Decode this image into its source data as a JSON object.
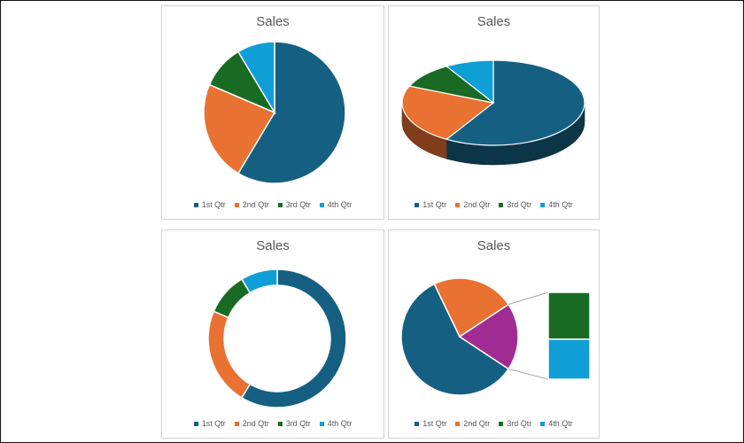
{
  "colors": {
    "1st Qtr": "#156082",
    "2nd Qtr": "#e97132",
    "3rd Qtr": "#196b24",
    "4th Qtr": "#0f9ed5",
    "second_plot_slice": "#a02b93"
  },
  "chart_data": [
    {
      "type": "pie",
      "title": "Sales",
      "categories": [
        "1st Qtr",
        "2nd Qtr",
        "3rd Qtr",
        "4th Qtr"
      ],
      "values": [
        8.2,
        3.2,
        1.4,
        1.2
      ],
      "legend": "bottom"
    },
    {
      "type": "pie",
      "variant": "3d",
      "title": "Sales",
      "categories": [
        "1st Qtr",
        "2nd Qtr",
        "3rd Qtr",
        "4th Qtr"
      ],
      "values": [
        8.2,
        3.2,
        1.4,
        1.2
      ],
      "legend": "bottom"
    },
    {
      "type": "pie",
      "variant": "doughnut",
      "title": "Sales",
      "categories": [
        "1st Qtr",
        "2nd Qtr",
        "3rd Qtr",
        "4th Qtr"
      ],
      "values": [
        8.2,
        3.2,
        1.4,
        1.2
      ],
      "legend": "bottom"
    },
    {
      "type": "pie",
      "variant": "bar-of-pie",
      "title": "Sales",
      "categories": [
        "1st Qtr",
        "2nd Qtr",
        "3rd Qtr",
        "4th Qtr"
      ],
      "values": [
        8.2,
        3.2,
        1.4,
        1.2
      ],
      "second_plot": [
        "3rd Qtr",
        "4th Qtr"
      ],
      "legend": "bottom"
    }
  ]
}
